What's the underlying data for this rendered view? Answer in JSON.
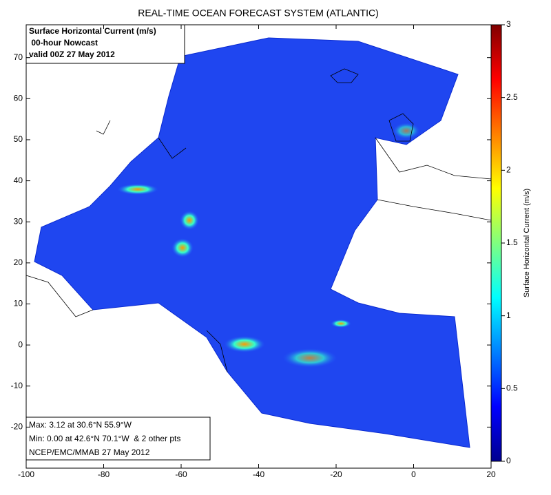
{
  "title": "REAL-TIME OCEAN FORECAST SYSTEM (ATLANTIC)",
  "info_box": [
    "Surface Horizontal Current (m/s)",
    " 00-hour Nowcast",
    "valid 00Z 27 May 2012"
  ],
  "stats_box": [
    "Max: 3.12 at 30.6°N 55.9°W",
    "Min: 0.00 at 42.6°N 70.1°W  & 2 other pts",
    "NCEP/EMC/MMAB 27 May 2012"
  ],
  "map": {
    "xlim": [
      -100,
      20
    ],
    "xticks": [
      -100,
      -80,
      -60,
      -40,
      -20,
      0,
      20
    ],
    "ylim": [
      -30,
      78
    ],
    "yticks": [
      -20,
      -10,
      0,
      10,
      20,
      30,
      40,
      50,
      60,
      70
    ]
  },
  "colorbar": {
    "label": "Surface Horizontal Current (m/s)",
    "lim": [
      0,
      3
    ],
    "ticks": [
      0,
      0.5,
      1,
      1.5,
      2,
      2.5,
      3
    ]
  }
}
